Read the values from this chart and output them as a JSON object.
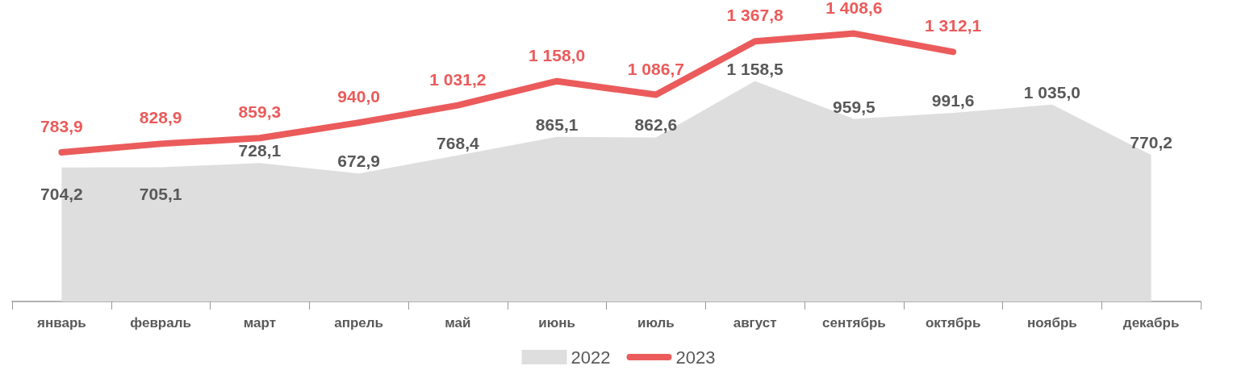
{
  "chart_data": {
    "type": "line",
    "categories": [
      "январь",
      "февраль",
      "март",
      "апрель",
      "май",
      "июнь",
      "июль",
      "август",
      "сентябрь",
      "октябрь",
      "ноябрь",
      "декабрь"
    ],
    "series": [
      {
        "name": "2022",
        "type": "area",
        "color": "#dedede",
        "values": [
          704.2,
          705.1,
          728.1,
          672.9,
          768.4,
          865.1,
          862.6,
          1158.5,
          959.5,
          991.6,
          1035.0,
          770.2
        ],
        "value_labels": [
          "704,2",
          "705,1",
          "728,1",
          "672,9",
          "768,4",
          "865,1",
          "862,6",
          "1 158,5",
          "959,5",
          "991,6",
          "1 035,0",
          "770,2"
        ]
      },
      {
        "name": "2023",
        "type": "line",
        "color": "#eb5b5b",
        "values": [
          783.9,
          828.9,
          859.3,
          940.0,
          1031.2,
          1158.0,
          1086.7,
          1367.8,
          1408.6,
          1312.1,
          null,
          null
        ],
        "value_labels": [
          "783,9",
          "828,9",
          "859,3",
          "940,0",
          "1 031,2",
          "1 158,0",
          "1 086,7",
          "1 367,8",
          "1 408,6",
          "1 312,1",
          null,
          null
        ]
      }
    ],
    "legend": "bottom",
    "grid": false,
    "marker": "none",
    "line_style": "solid"
  }
}
